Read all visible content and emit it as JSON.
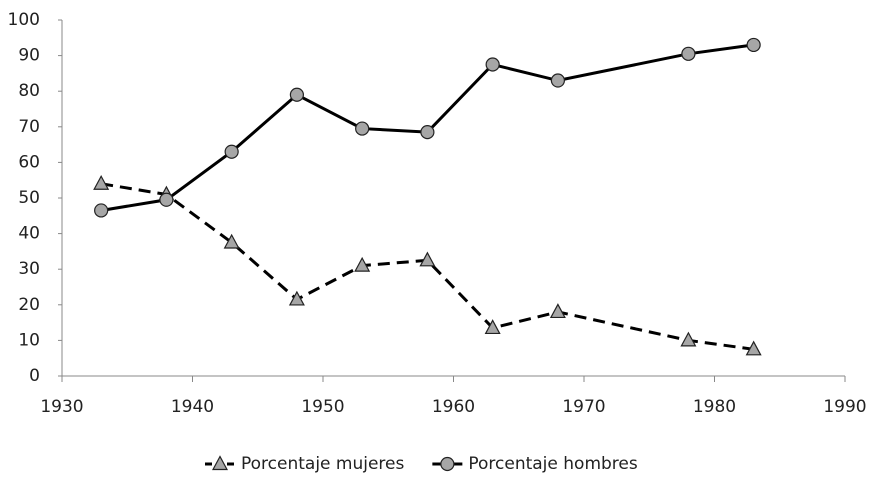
{
  "chart_data": {
    "type": "line",
    "x": [
      1933,
      1938,
      1943,
      1948,
      1953,
      1958,
      1963,
      1968,
      1978,
      1983
    ],
    "series": [
      {
        "name": "Porcentaje mujeres",
        "color": "#000000",
        "marker": "triangle",
        "dash": true,
        "values": [
          54,
          51,
          37.5,
          21.5,
          31,
          32.5,
          13.5,
          18,
          10,
          7.5
        ]
      },
      {
        "name": "Porcentaje hombres",
        "color": "#000000",
        "marker": "circle",
        "dash": false,
        "values": [
          46.5,
          49.5,
          63,
          79,
          69.5,
          68.5,
          87.5,
          83,
          90.5,
          93
        ]
      }
    ],
    "xlim": [
      1930,
      1990
    ],
    "xticks": [
      1930,
      1940,
      1950,
      1960,
      1970,
      1980,
      1990
    ],
    "ylim": [
      0,
      100
    ],
    "yticks": [
      0,
      10,
      20,
      30,
      40,
      50,
      60,
      70,
      80,
      90,
      100
    ],
    "grid": false,
    "legend": "bottom"
  }
}
